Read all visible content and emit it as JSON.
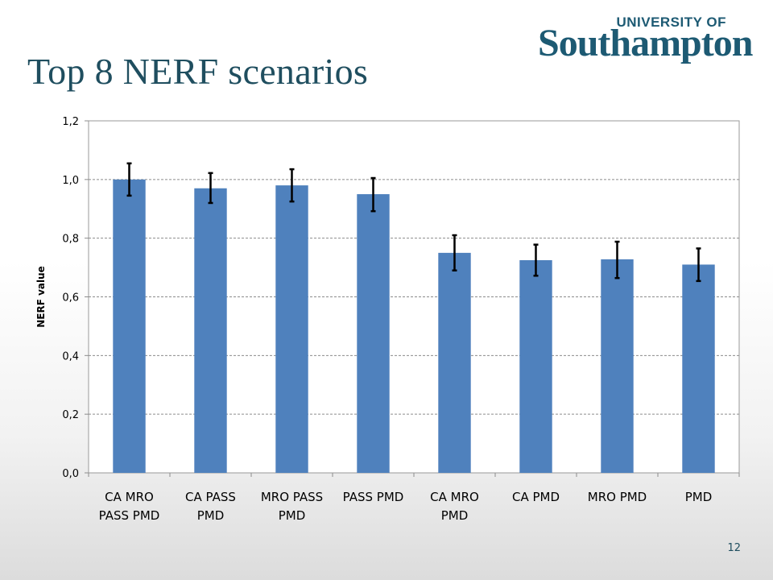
{
  "slide": {
    "title": "Top 8 NERF scenarios",
    "page_number": "12",
    "logo_line1": "UNIVERSITY OF",
    "logo_line2": "Southampton"
  },
  "colors": {
    "bar": "#4f81bd",
    "title": "#1f4e5f",
    "logo": "#1d5a73"
  },
  "chart_data": {
    "type": "bar",
    "title": "",
    "xlabel": "",
    "ylabel": "NERF value",
    "ylim": [
      0,
      1.2
    ],
    "yticks": [
      "0,0",
      "0,2",
      "0,4",
      "0,6",
      "0,8",
      "1,0",
      "1,2"
    ],
    "grid": true,
    "categories": [
      [
        "CA MRO",
        "PASS PMD"
      ],
      [
        "CA PASS",
        "PMD"
      ],
      [
        "MRO PASS",
        "PMD"
      ],
      [
        "PASS PMD"
      ],
      [
        "CA MRO",
        "PMD"
      ],
      [
        "CA PMD"
      ],
      [
        "MRO PMD"
      ],
      [
        "PMD"
      ]
    ],
    "values": [
      1.0,
      0.97,
      0.98,
      0.95,
      0.75,
      0.725,
      0.728,
      0.71
    ],
    "error_bars": [
      [
        0.945,
        1.055
      ],
      [
        0.92,
        1.022
      ],
      [
        0.925,
        1.035
      ],
      [
        0.892,
        1.005
      ],
      [
        0.69,
        0.81
      ],
      [
        0.672,
        0.778
      ],
      [
        0.664,
        0.788
      ],
      [
        0.654,
        0.765
      ]
    ]
  }
}
